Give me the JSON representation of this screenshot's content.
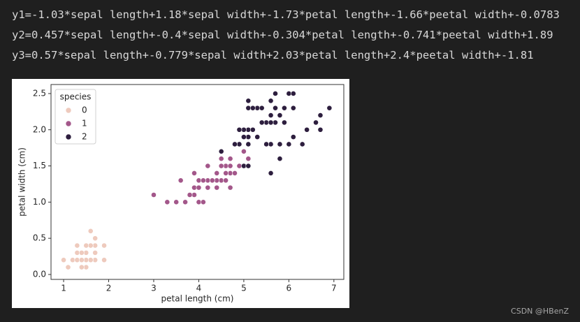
{
  "output_lines": [
    "y1=-1.03*sepal length+1.18*sepal width+-1.73*petal length+-1.66*peetal width+-0.0783",
    "y2=0.457*sepal length+-0.4*sepal width+-0.304*petal length+-0.741*peetal width+1.89",
    "y3=0.57*sepal length+-0.779*sepal width+2.03*petal length+2.4*peetal width+-1.81"
  ],
  "watermark": "CSDN @HBenZ",
  "chart_data": {
    "type": "scatter",
    "x_label": "petal length (cm)",
    "y_label": "petal width (cm)",
    "legend_title": "species",
    "legend": "upper left",
    "grid": false,
    "xlim": [
      0.72,
      7.22
    ],
    "ylim": [
      -0.068,
      2.625
    ],
    "xticks": [
      1,
      2,
      3,
      4,
      5,
      6,
      7
    ],
    "yticks": [
      {
        "value": 0,
        "label": "0.0"
      },
      0.5,
      {
        "value": 1,
        "label": "1.0"
      },
      1.5,
      {
        "value": 2,
        "label": "2.0"
      },
      2.5
    ],
    "series": [
      {
        "name": "0",
        "color": "#eecabd",
        "x": [
          1.4,
          1.4,
          1.3,
          1.5,
          1.4,
          1.7,
          1.4,
          1.5,
          1.4,
          1.5,
          1.5,
          1.6,
          1.4,
          1.1,
          1.2,
          1.5,
          1.3,
          1.4,
          1.7,
          1.5,
          1.7,
          1.5,
          1.0,
          1.7,
          1.9,
          1.6,
          1.6,
          1.5,
          1.4,
          1.6,
          1.6,
          1.5,
          1.5,
          1.4,
          1.5,
          1.2,
          1.3,
          1.4,
          1.3,
          1.5,
          1.3,
          1.3,
          1.3,
          1.6,
          1.9,
          1.4,
          1.6,
          1.4,
          1.5,
          1.4
        ],
        "values": [
          0.2,
          0.2,
          0.2,
          0.2,
          0.2,
          0.4,
          0.3,
          0.2,
          0.2,
          0.1,
          0.2,
          0.2,
          0.1,
          0.1,
          0.2,
          0.4,
          0.4,
          0.3,
          0.3,
          0.3,
          0.2,
          0.4,
          0.2,
          0.5,
          0.2,
          0.2,
          0.4,
          0.2,
          0.2,
          0.2,
          0.2,
          0.4,
          0.1,
          0.2,
          0.2,
          0.2,
          0.2,
          0.1,
          0.2,
          0.2,
          0.3,
          0.3,
          0.2,
          0.6,
          0.4,
          0.3,
          0.2,
          0.2,
          0.2,
          0.2
        ]
      },
      {
        "name": "1",
        "color": "#a3578a",
        "x": [
          4.7,
          4.5,
          4.9,
          4.0,
          4.6,
          4.5,
          4.7,
          3.3,
          4.6,
          3.9,
          3.5,
          4.2,
          4.0,
          4.7,
          3.6,
          4.4,
          4.5,
          4.1,
          4.5,
          3.9,
          4.8,
          4.0,
          4.9,
          4.7,
          4.3,
          4.4,
          4.8,
          5.0,
          4.5,
          3.5,
          3.8,
          3.7,
          3.9,
          5.1,
          4.5,
          4.5,
          4.7,
          4.4,
          4.1,
          4.0,
          4.4,
          4.6,
          4.0,
          3.3,
          4.2,
          4.2,
          4.2,
          4.3,
          3.0,
          4.1
        ],
        "values": [
          1.4,
          1.5,
          1.5,
          1.3,
          1.5,
          1.3,
          1.6,
          1.0,
          1.3,
          1.4,
          1.0,
          1.5,
          1.0,
          1.4,
          1.3,
          1.4,
          1.5,
          1.0,
          1.5,
          1.1,
          1.8,
          1.3,
          1.5,
          1.2,
          1.3,
          1.4,
          1.4,
          1.7,
          1.5,
          1.0,
          1.1,
          1.0,
          1.2,
          1.6,
          1.5,
          1.6,
          1.5,
          1.3,
          1.3,
          1.3,
          1.2,
          1.4,
          1.2,
          1.0,
          1.3,
          1.2,
          1.3,
          1.3,
          1.1,
          1.3
        ]
      },
      {
        "name": "2",
        "color": "#2d1e3e",
        "x": [
          6.0,
          5.1,
          5.9,
          5.6,
          5.8,
          6.6,
          4.5,
          6.3,
          5.8,
          6.1,
          5.1,
          5.3,
          5.5,
          5.0,
          5.1,
          5.3,
          5.5,
          6.7,
          6.9,
          5.0,
          5.7,
          4.9,
          6.7,
          4.9,
          5.7,
          6.0,
          4.8,
          4.9,
          5.6,
          5.8,
          6.1,
          6.4,
          5.6,
          5.1,
          5.6,
          6.1,
          5.6,
          5.5,
          4.8,
          5.4,
          5.6,
          5.1,
          5.1,
          5.9,
          5.7,
          5.2,
          5.0,
          5.2,
          5.4,
          5.1
        ],
        "values": [
          2.5,
          1.9,
          2.1,
          1.8,
          2.2,
          2.1,
          1.7,
          1.8,
          1.8,
          2.5,
          2.0,
          1.9,
          2.1,
          2.0,
          2.4,
          2.3,
          1.8,
          2.2,
          2.3,
          1.5,
          2.3,
          2.0,
          2.0,
          1.8,
          2.1,
          1.8,
          1.8,
          1.8,
          2.1,
          1.6,
          1.9,
          2.0,
          2.2,
          1.5,
          1.4,
          2.3,
          2.4,
          1.8,
          1.8,
          2.1,
          2.4,
          2.3,
          1.9,
          2.3,
          2.5,
          2.3,
          1.9,
          2.0,
          2.3,
          1.8
        ]
      }
    ]
  }
}
